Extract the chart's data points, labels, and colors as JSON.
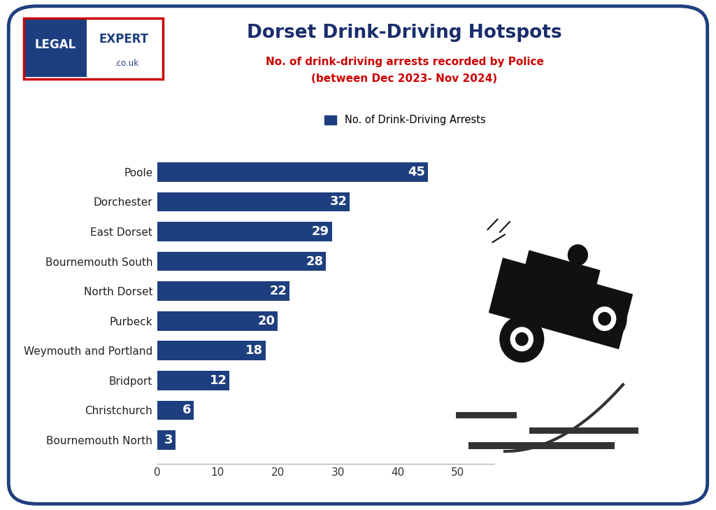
{
  "title": "Dorset Drink-Driving Hotspots",
  "subtitle_line1": "No. of drink-driving arrests recorded by Police",
  "subtitle_line2": "(between Dec 2023- Nov 2024)",
  "legend_label": "No. of Drink-Driving Arrests",
  "categories": [
    "Poole",
    "Dorchester",
    "East Dorset",
    "Bournemouth South",
    "North Dorset",
    "Purbeck",
    "Weymouth and Portland",
    "Bridport",
    "Christchurch",
    "Bournemouth North"
  ],
  "values": [
    45,
    32,
    29,
    28,
    22,
    20,
    18,
    12,
    6,
    3
  ],
  "bar_color": "#1e3f7f",
  "bar_label_color": "#FFFFFF",
  "title_color": "#1a2d6b",
  "subtitle_color": "#cc0000",
  "xlabel_ticks": [
    0,
    10,
    20,
    30,
    40,
    50
  ],
  "xlim": [
    0,
    56
  ],
  "background_color": "#FFFFFF",
  "outer_border_color": "#1e3f7f",
  "logo_bg_blue": "#1e3f7f",
  "tick_fontsize": 11,
  "bar_label_fontsize": 13,
  "ytick_fontsize": 11
}
